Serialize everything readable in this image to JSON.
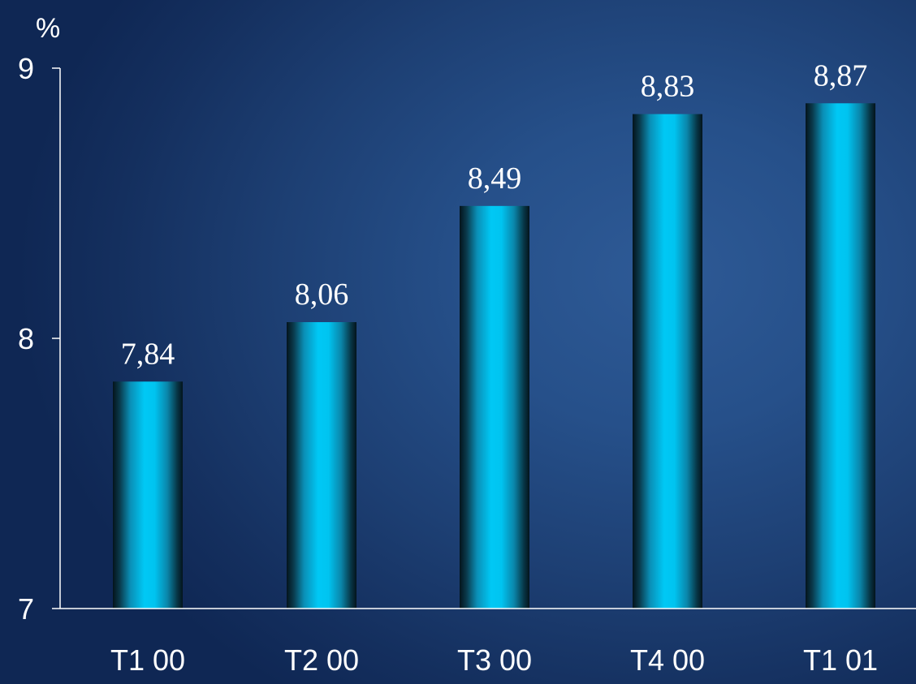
{
  "chart_data": {
    "type": "bar",
    "title": "",
    "unit_label": "%",
    "xlabel": "",
    "ylabel": "",
    "categories": [
      "T1 00",
      "T2 00",
      "T3 00",
      "T4 00",
      "T1 01"
    ],
    "values": [
      7.84,
      8.06,
      8.49,
      8.83,
      8.87
    ],
    "data_labels": [
      "7,84",
      "8,06",
      "8,49",
      "8,83",
      "8,87"
    ],
    "ylim": [
      7,
      9
    ],
    "yticks": [
      7,
      8,
      9
    ],
    "ytick_labels": [
      "7",
      "8",
      "9"
    ],
    "grid": false,
    "legend": "none",
    "colors": {
      "bar_center": "#00c8f5",
      "bar_edge": "#04141c",
      "text": "#ffffff",
      "axis": "#ffffff"
    }
  }
}
